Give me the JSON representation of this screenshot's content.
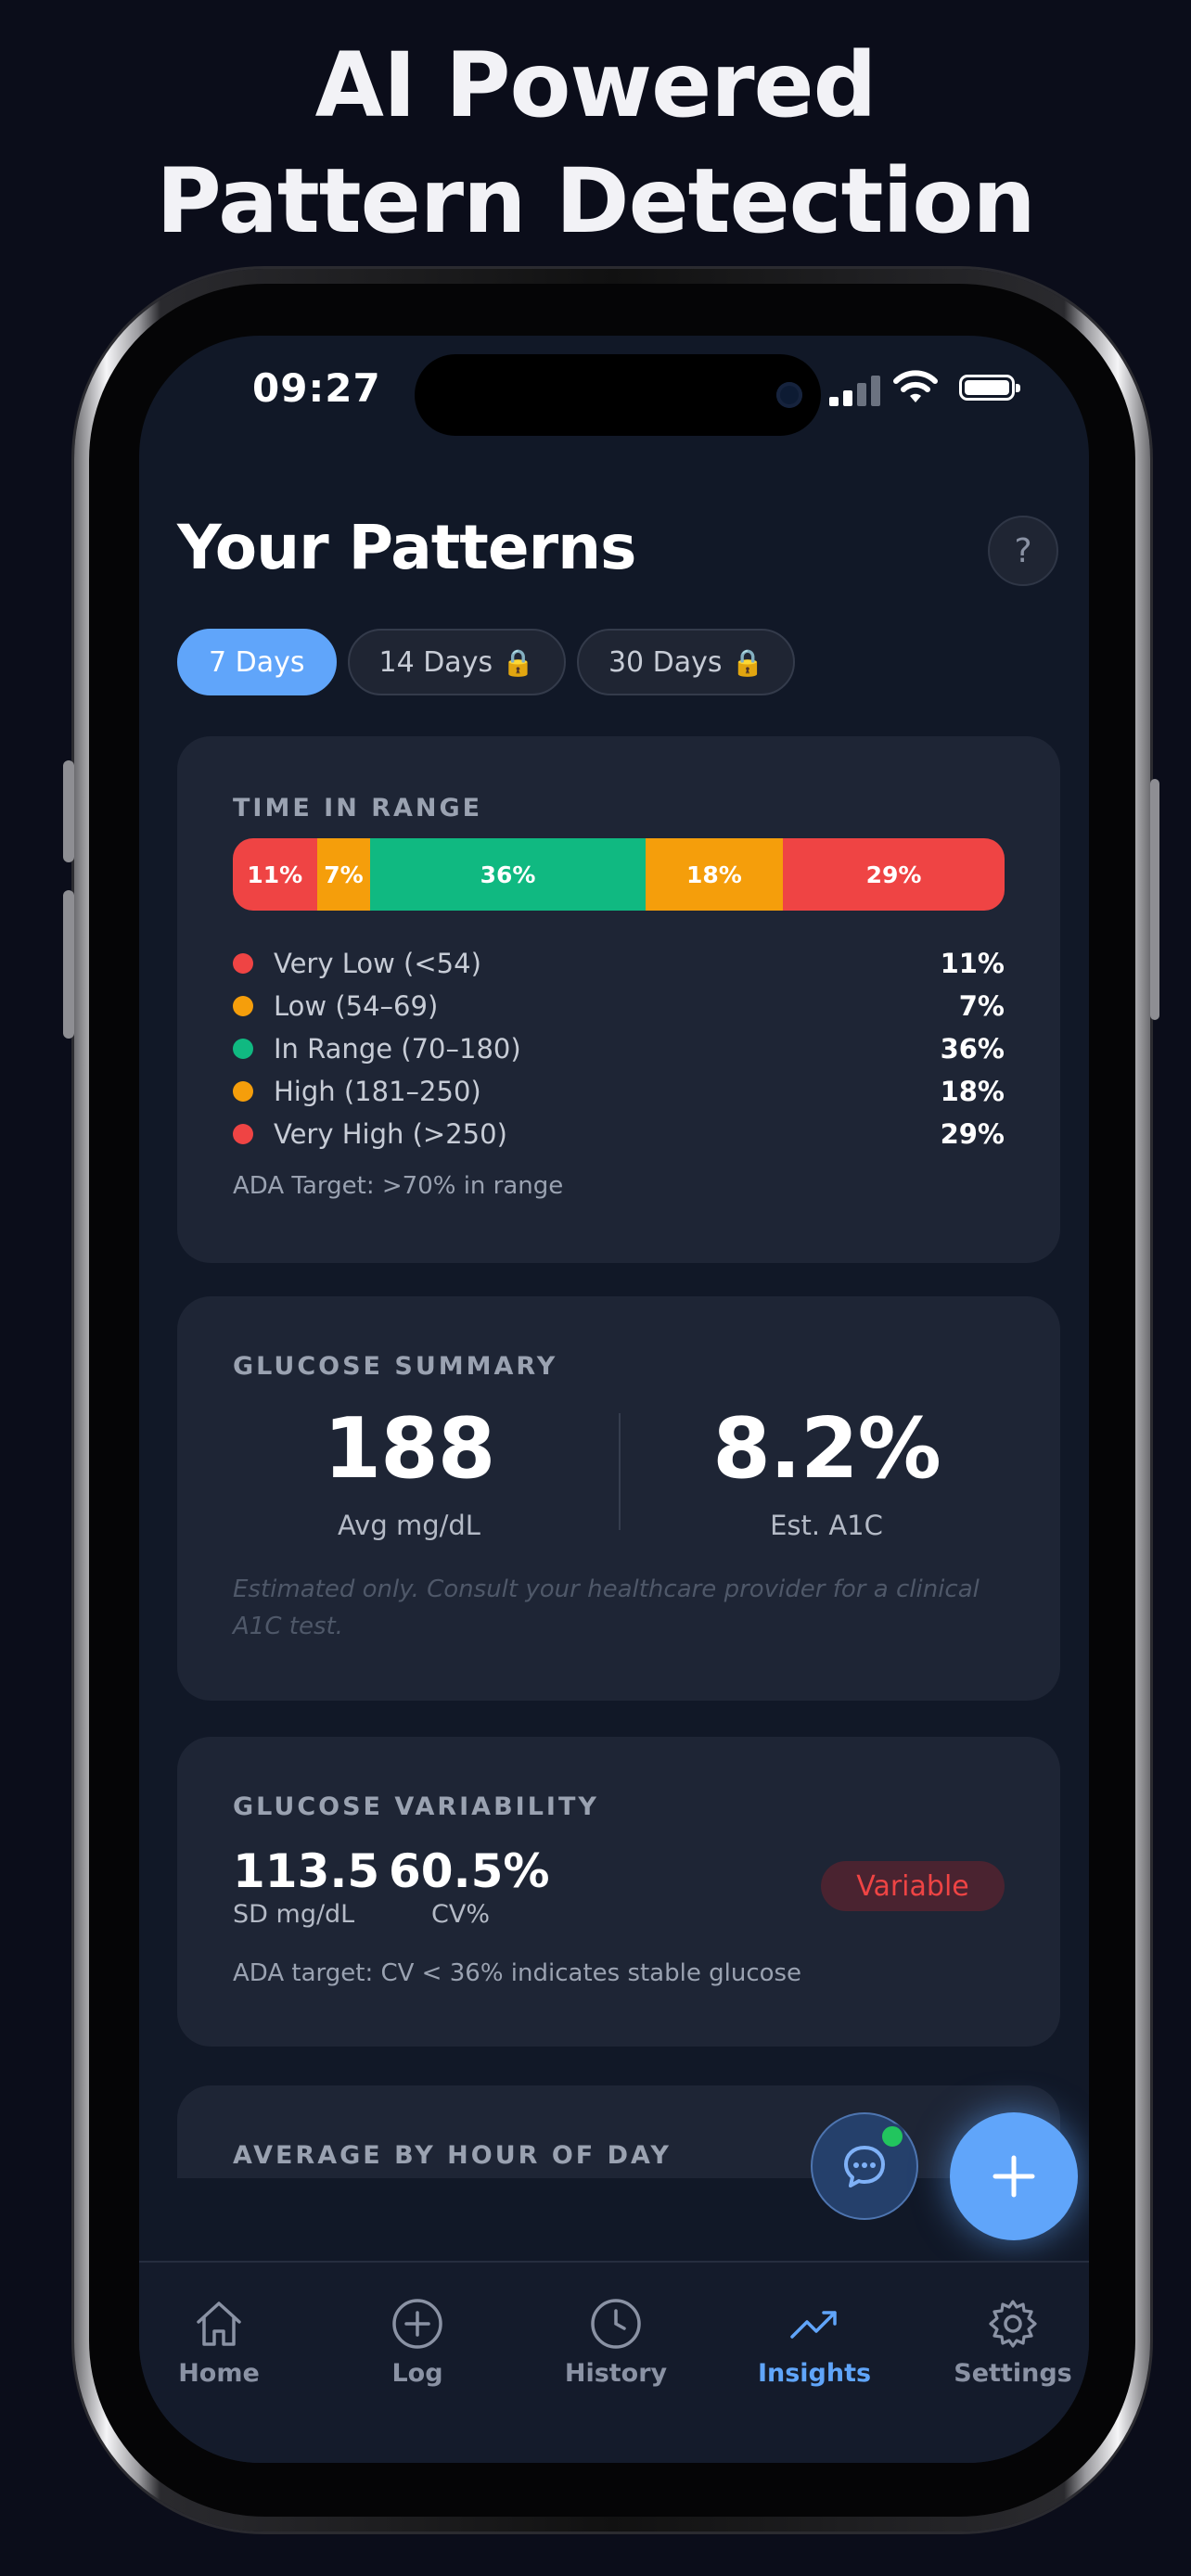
{
  "headline": {
    "line1": "AI Powered",
    "line2": "Pattern Detection"
  },
  "status_bar": {
    "time": "09:27"
  },
  "header": {
    "title": "Your Patterns",
    "help_label": "?"
  },
  "period_tabs": [
    {
      "label": "7 Days",
      "active": true,
      "locked": false
    },
    {
      "label": "14 Days",
      "active": false,
      "locked": true
    },
    {
      "label": "30 Days",
      "active": false,
      "locked": true
    }
  ],
  "time_in_range": {
    "title": "TIME IN RANGE",
    "segments": [
      {
        "label": "Very Low (<54)",
        "percent_label": "11%",
        "value": 11,
        "color": "#ef4444"
      },
      {
        "label": "Low (54–69)",
        "percent_label": "7%",
        "value": 7,
        "color": "#f59e0b"
      },
      {
        "label": "In Range (70–180)",
        "percent_label": "36%",
        "value": 36,
        "color": "#10b981"
      },
      {
        "label": "High (181–250)",
        "percent_label": "18%",
        "value": 18,
        "color": "#f59e0b"
      },
      {
        "label": "Very High (>250)",
        "percent_label": "29%",
        "value": 29,
        "color": "#ef4444"
      }
    ],
    "target_note": "ADA Target: >70% in range"
  },
  "glucose_summary": {
    "title": "GLUCOSE SUMMARY",
    "avg_value": "188",
    "avg_label": "Avg mg/dL",
    "a1c_value": "8.2%",
    "a1c_label": "Est. A1C",
    "disclaimer": "Estimated only. Consult your healthcare provider for a clinical A1C test."
  },
  "glucose_variability": {
    "title": "GLUCOSE VARIABILITY",
    "sd_value": "113.5",
    "sd_label": "SD mg/dL",
    "cv_value": "60.5%",
    "cv_label": "CV%",
    "badge": "Variable",
    "note": "ADA target: CV < 36% indicates stable glucose"
  },
  "hourly_card": {
    "title": "AVERAGE BY HOUR OF DAY"
  },
  "tab_bar": [
    {
      "label": "Home",
      "icon": "home-icon",
      "active": false
    },
    {
      "label": "Log",
      "icon": "plus-circle-icon",
      "active": false
    },
    {
      "label": "History",
      "icon": "clock-icon",
      "active": false
    },
    {
      "label": "Insights",
      "icon": "trending-up-icon",
      "active": true
    },
    {
      "label": "Settings",
      "icon": "gear-icon",
      "active": false
    }
  ],
  "colors": {
    "accent": "#60a5fa",
    "background": "#111827",
    "card": "#1e2535",
    "danger": "#ef4444",
    "warning": "#f59e0b",
    "success": "#10b981"
  }
}
